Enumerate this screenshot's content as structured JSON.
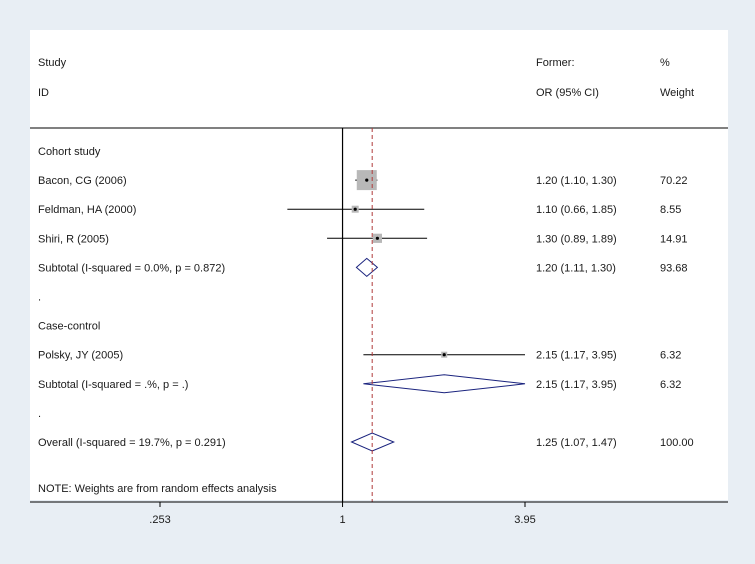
{
  "chart_data": {
    "type": "forest",
    "header": {
      "study_line1": "Study",
      "study_line2": "ID",
      "effect_line1": "Former:",
      "effect_line2": "OR (95% CI)",
      "weight_line1": "%",
      "weight_line2": "Weight"
    },
    "x_scale": "log",
    "xlim": [
      0.253,
      3.95
    ],
    "x_ticks": [
      {
        "value": 0.253,
        "label": ".253"
      },
      {
        "value": 1,
        "label": "1"
      },
      {
        "value": 3.95,
        "label": "3.95"
      }
    ],
    "null_line": 1,
    "overall_line": 1.25,
    "rows": [
      {
        "kind": "group",
        "label": "Cohort study"
      },
      {
        "kind": "study",
        "label": "Bacon, CG (2006)",
        "or": 1.2,
        "lo": 1.1,
        "hi": 1.3,
        "ci_text": "1.20 (1.10, 1.30)",
        "weight": "70.22",
        "w": 70.22
      },
      {
        "kind": "study",
        "label": "Feldman, HA (2000)",
        "or": 1.1,
        "lo": 0.66,
        "hi": 1.85,
        "ci_text": "1.10 (0.66, 1.85)",
        "weight": "8.55",
        "w": 8.55
      },
      {
        "kind": "study",
        "label": "Shiri, R (2005)",
        "or": 1.3,
        "lo": 0.89,
        "hi": 1.89,
        "ci_text": "1.30 (0.89, 1.89)",
        "weight": "14.91",
        "w": 14.91
      },
      {
        "kind": "subtotal",
        "label": "Subtotal  (I-squared = 0.0%, p = 0.872)",
        "or": 1.2,
        "lo": 1.11,
        "hi": 1.3,
        "ci_text": "1.20 (1.11, 1.30)",
        "weight": "93.68"
      },
      {
        "kind": "dot",
        "label": "."
      },
      {
        "kind": "group",
        "label": "Case-control"
      },
      {
        "kind": "study",
        "label": "Polsky, JY (2005)",
        "or": 2.15,
        "lo": 1.17,
        "hi": 3.95,
        "ci_text": "2.15 (1.17, 3.95)",
        "weight": "6.32",
        "w": 6.32
      },
      {
        "kind": "subtotal",
        "label": "Subtotal  (I-squared = .%, p = .)",
        "or": 2.15,
        "lo": 1.17,
        "hi": 3.95,
        "ci_text": "2.15 (1.17, 3.95)",
        "weight": "6.32"
      },
      {
        "kind": "dot",
        "label": "."
      },
      {
        "kind": "overall",
        "label": "Overall  (I-squared = 19.7%, p = 0.291)",
        "or": 1.25,
        "lo": 1.07,
        "hi": 1.47,
        "ci_text": "1.25 (1.07, 1.47)",
        "weight": "100.00"
      }
    ],
    "note": "NOTE: Weights are from random effects analysis"
  },
  "colors": {
    "background": "#e8eef4",
    "panel": "#ffffff",
    "line": "#000000",
    "overall_line": "#b03a3a",
    "box": "#b8b8b8",
    "diamond": "#1a237e"
  }
}
